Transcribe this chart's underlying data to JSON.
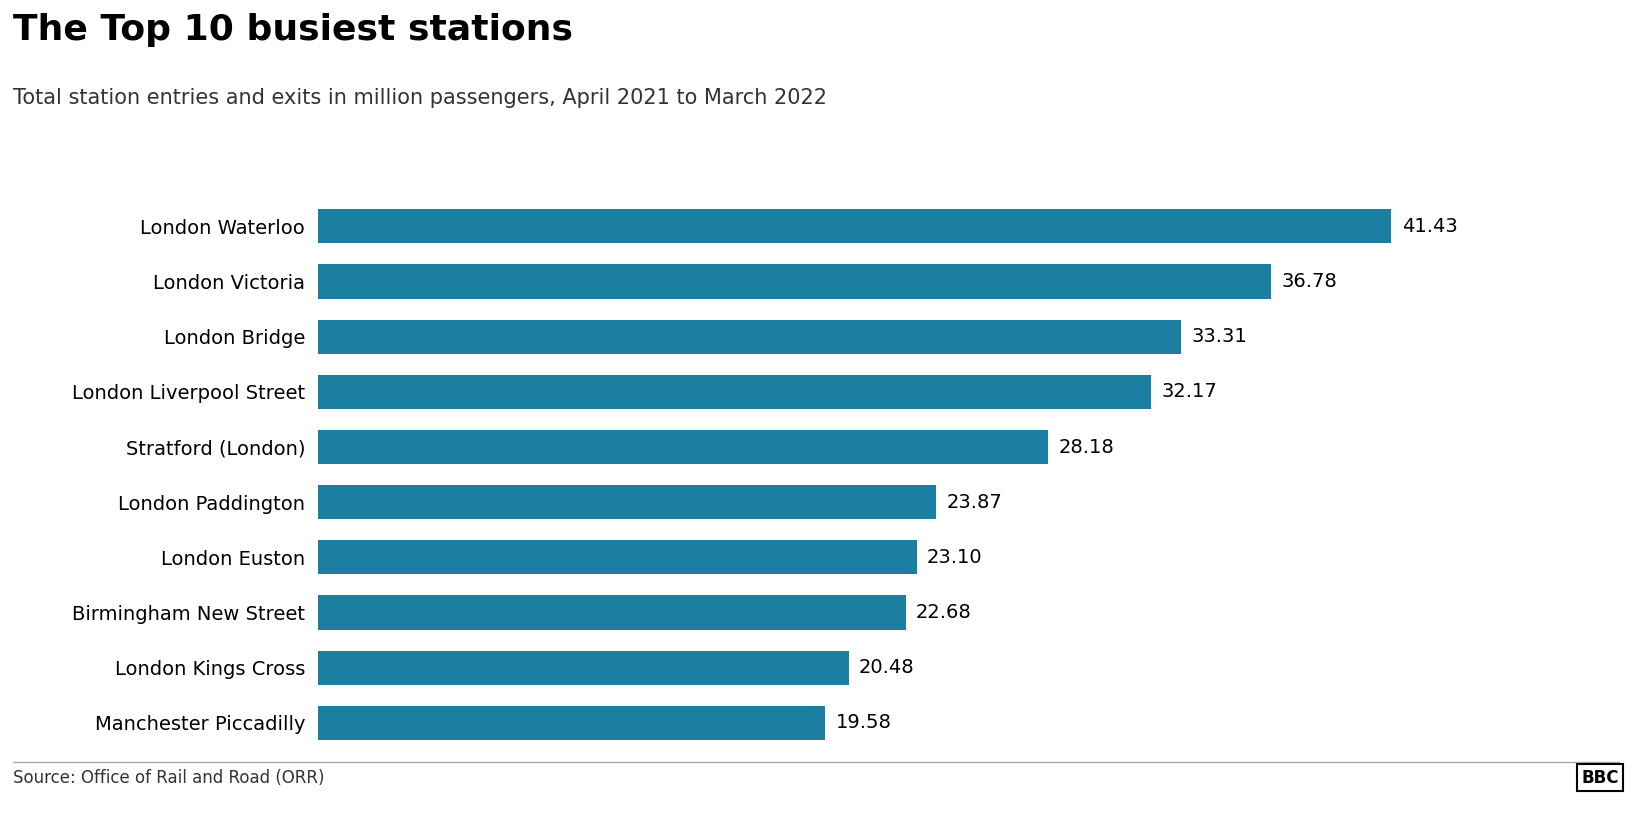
{
  "title": "The Top 10 busiest stations",
  "subtitle": "Total station entries and exits in million passengers, April 2021 to March 2022",
  "source": "Source: Office of Rail and Road (ORR)",
  "bbc_logo": "BBC",
  "stations": [
    "London Waterloo",
    "London Victoria",
    "London Bridge",
    "London Liverpool Street",
    "Stratford (London)",
    "London Paddington",
    "London Euston",
    "Birmingham New Street",
    "London Kings Cross",
    "Manchester Piccadilly"
  ],
  "values": [
    41.43,
    36.78,
    33.31,
    32.17,
    28.18,
    23.87,
    23.1,
    22.68,
    20.48,
    19.58
  ],
  "bar_color": "#1a7fa0",
  "background_color": "#ffffff",
  "title_fontsize": 26,
  "subtitle_fontsize": 15,
  "label_fontsize": 14,
  "value_fontsize": 14,
  "source_fontsize": 12,
  "xlim": [
    0,
    46
  ],
  "bar_height": 0.62
}
